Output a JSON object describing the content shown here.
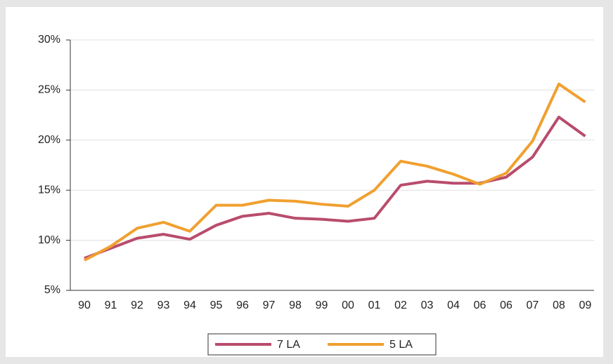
{
  "chart_data": {
    "type": "line",
    "categories": [
      "90",
      "91",
      "92",
      "93",
      "94",
      "95",
      "96",
      "97",
      "98",
      "99",
      "00",
      "01",
      "02",
      "03",
      "04",
      "06",
      "06",
      "07",
      "08",
      "09"
    ],
    "series": [
      {
        "name": "7 LA",
        "color": "#b94c6c",
        "values": [
          8.2,
          9.2,
          10.2,
          10.6,
          10.1,
          11.5,
          12.4,
          12.7,
          12.2,
          12.1,
          11.9,
          12.2,
          15.5,
          15.9,
          15.7,
          15.7,
          16.3,
          18.3,
          22.3,
          20.4
        ]
      },
      {
        "name": "5 LA",
        "color": "#f0a030",
        "values": [
          8.0,
          9.4,
          11.2,
          11.8,
          10.9,
          13.5,
          13.5,
          14.0,
          13.9,
          13.6,
          13.4,
          15.0,
          17.9,
          17.4,
          16.6,
          15.6,
          16.7,
          19.9,
          25.6,
          23.8
        ]
      }
    ],
    "ylim": [
      5,
      30
    ],
    "yticks": [
      {
        "value": 5,
        "label": "5%"
      },
      {
        "value": 10,
        "label": "10%"
      },
      {
        "value": 15,
        "label": "15%"
      },
      {
        "value": 20,
        "label": "20%"
      },
      {
        "value": 25,
        "label": "25%"
      },
      {
        "value": 30,
        "label": "30%"
      }
    ],
    "grid": true,
    "legend": "bottom"
  }
}
